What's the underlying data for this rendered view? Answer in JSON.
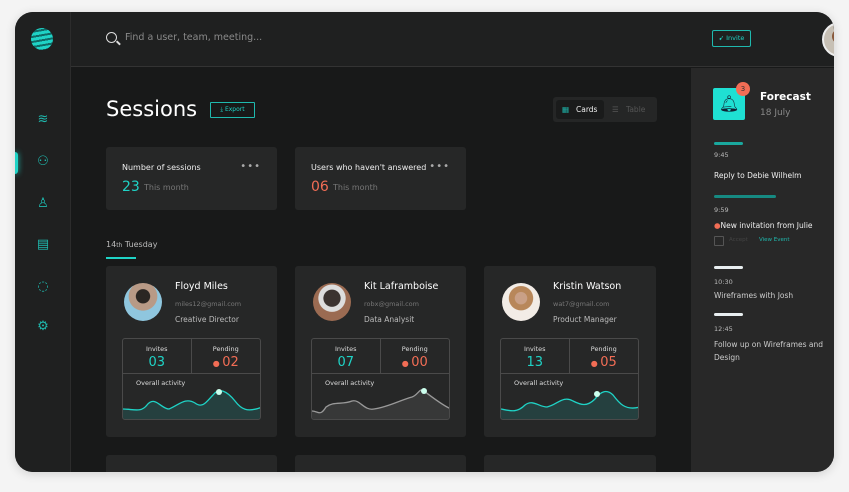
{
  "header": {
    "search_placeholder": "Find a user, team, meeting...",
    "invite_label": "Invite"
  },
  "sidebar": {
    "items": [
      "layers-icon",
      "users-icon",
      "user-icon",
      "document-icon",
      "chat-icon",
      "settings-icon"
    ]
  },
  "main": {
    "title": "Sessions",
    "export_label": "Export",
    "view_toggle": {
      "cards": "Cards",
      "table": "Table",
      "selected": "Cards"
    },
    "stats": [
      {
        "label": "Number of sessions",
        "value": "23",
        "sub": "This month"
      },
      {
        "label": "Users  who haven't answered",
        "value": "06",
        "sub": "This month"
      }
    ],
    "day": {
      "num": "14",
      "suffix": "th",
      "name": "Tuesday"
    },
    "people": [
      {
        "name": "Floyd Miles",
        "email": "miles12@gmail.com",
        "role": "Creative Director",
        "invites_label": "Invites",
        "invites": "03",
        "pending_label": "Pending",
        "pending": "02",
        "activity_label": "Overall activity"
      },
      {
        "name": "Kit Laframboise",
        "email": "robx@gmail.com",
        "role": "Data Analysit",
        "invites_label": "Invites",
        "invites": "07",
        "pending_label": "Pending",
        "pending": "00",
        "activity_label": "Overall activity"
      },
      {
        "name": "Kristin Watson",
        "email": "wat7@gmail.com",
        "role": "Product Manager",
        "invites_label": "Invites",
        "invites": "13",
        "pending_label": "Pending",
        "pending": "05",
        "activity_label": "Overall activity"
      }
    ]
  },
  "forecast": {
    "badge": "3",
    "title": "Forecast",
    "date": "18 July",
    "events": [
      {
        "time": "9:45",
        "text": "Reply to Debie Wilhelm"
      },
      {
        "time": "9:59",
        "text": "New invitation from Julie",
        "accept": "Accept",
        "view": "View Event"
      },
      {
        "time": "10:30",
        "text": "Wireframes with Josh"
      },
      {
        "time": "12:45",
        "text": "Follow up on Wireframes and Design"
      }
    ]
  },
  "colors": {
    "accent": "#1fd3c6",
    "alert": "#f26d55"
  }
}
